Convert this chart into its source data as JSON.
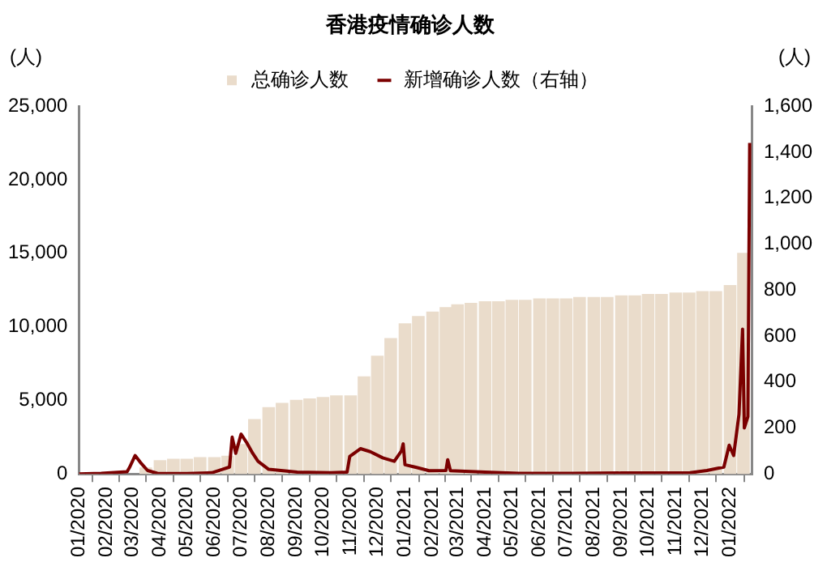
{
  "chart_data": {
    "type": "bar",
    "title": "香港疫情确诊人数",
    "ylabel": "(人)",
    "y2label": "(人)",
    "legend": "top",
    "grid": false,
    "xlim": [
      "2020-01-01",
      "2022-01-26"
    ],
    "xticks": [
      {
        "value": "2020-01-01",
        "label": "01/2020"
      },
      {
        "value": "2020-02-01",
        "label": "02/2020"
      },
      {
        "value": "2020-03-01",
        "label": "03/2020"
      },
      {
        "value": "2020-04-01",
        "label": "04/2020"
      },
      {
        "value": "2020-05-01",
        "label": "05/2020"
      },
      {
        "value": "2020-06-01",
        "label": "06/2020"
      },
      {
        "value": "2020-07-01",
        "label": "07/2020"
      },
      {
        "value": "2020-08-01",
        "label": "08/2020"
      },
      {
        "value": "2020-09-01",
        "label": "09/2020"
      },
      {
        "value": "2020-10-01",
        "label": "10/2020"
      },
      {
        "value": "2020-11-01",
        "label": "11/2020"
      },
      {
        "value": "2020-12-01",
        "label": "12/2020"
      },
      {
        "value": "2021-01-01",
        "label": "01/2021"
      },
      {
        "value": "2021-02-01",
        "label": "02/2021"
      },
      {
        "value": "2021-03-01",
        "label": "03/2021"
      },
      {
        "value": "2021-04-01",
        "label": "04/2021"
      },
      {
        "value": "2021-05-01",
        "label": "05/2021"
      },
      {
        "value": "2021-06-01",
        "label": "06/2021"
      },
      {
        "value": "2021-07-01",
        "label": "07/2021"
      },
      {
        "value": "2021-08-01",
        "label": "08/2021"
      },
      {
        "value": "2021-09-01",
        "label": "09/2021"
      },
      {
        "value": "2021-10-01",
        "label": "10/2021"
      },
      {
        "value": "2021-11-01",
        "label": "11/2021"
      },
      {
        "value": "2021-12-01",
        "label": "12/2021"
      },
      {
        "value": "2022-01-01",
        "label": "01/2022"
      }
    ],
    "ylim": [
      0,
      25000
    ],
    "yticks": [
      0,
      {
        "value": 5000,
        "label": "5,000"
      },
      {
        "value": 10000,
        "label": "10,000"
      },
      {
        "value": 15000,
        "label": "15,000"
      },
      {
        "value": 20000,
        "label": "20,000"
      },
      {
        "value": 25000,
        "label": "25,000"
      }
    ],
    "y2lim": [
      0,
      1600
    ],
    "y2ticks": [
      0,
      200,
      400,
      600,
      800,
      {
        "value": 1000,
        "label": "1,000"
      },
      {
        "value": 1200,
        "label": "1,200"
      },
      {
        "value": 1400,
        "label": "1,400"
      },
      {
        "value": 1600,
        "label": "1,600"
      }
    ],
    "series": [
      {
        "name": "总确诊人数",
        "color": "#eadccb",
        "x": [
          "2020-01-01",
          "2020-01-16",
          "2020-02-01",
          "2020-02-16",
          "2020-03-01",
          "2020-03-16",
          "2020-04-01",
          "2020-04-16",
          "2020-05-01",
          "2020-05-16",
          "2020-06-01",
          "2020-06-16",
          "2020-07-01",
          "2020-07-16",
          "2020-08-01",
          "2020-08-16",
          "2020-09-01",
          "2020-09-16",
          "2020-10-01",
          "2020-10-16",
          "2020-11-01",
          "2020-11-16",
          "2020-12-01",
          "2020-12-16",
          "2021-01-01",
          "2021-01-16",
          "2021-02-01",
          "2021-02-16",
          "2021-03-01",
          "2021-03-16",
          "2021-04-01",
          "2021-04-16",
          "2021-05-01",
          "2021-05-16",
          "2021-06-01",
          "2021-06-16",
          "2021-07-01",
          "2021-07-16",
          "2021-08-01",
          "2021-08-16",
          "2021-09-01",
          "2021-09-16",
          "2021-10-01",
          "2021-10-16",
          "2021-11-01",
          "2021-11-16",
          "2021-12-01",
          "2021-12-16",
          "2022-01-01",
          "2022-01-16"
        ],
        "values": [
          0,
          0,
          0,
          null,
          null,
          400,
          900,
          1000,
          1000,
          1100,
          1100,
          1200,
          2000,
          3700,
          4500,
          4800,
          5000,
          5100,
          5200,
          5300,
          5300,
          6600,
          8000,
          9200,
          10200,
          10700,
          11000,
          11300,
          11500,
          11600,
          11700,
          11700,
          11800,
          11800,
          11900,
          11900,
          11900,
          12000,
          12000,
          12000,
          12100,
          12100,
          12200,
          12200,
          12300,
          12300,
          12400,
          12400,
          12800,
          15000
        ]
      },
      {
        "name": "新增确诊人数（右轴）",
        "type": "line",
        "axis": "y2",
        "color": "#7b0000",
        "marker": "none",
        "line_style": "solid",
        "x": [
          "2020-01-01",
          "2020-01-26",
          "2020-02-24",
          "2020-02-27",
          "2020-03-04",
          "2020-03-10",
          "2020-03-18",
          "2020-03-29",
          "2020-05-01",
          "2020-05-29",
          "2020-06-10",
          "2020-06-18",
          "2020-06-21",
          "2020-06-25",
          "2020-07-01",
          "2020-07-07",
          "2020-07-14",
          "2020-07-20",
          "2020-08-01",
          "2020-09-02",
          "2020-10-10",
          "2020-10-28",
          "2020-10-31",
          "2020-11-12",
          "2020-11-23",
          "2020-12-07",
          "2020-12-20",
          "2020-12-28",
          "2020-12-30",
          "2021-01-01",
          "2021-01-14",
          "2021-01-28",
          "2021-02-16",
          "2021-02-18",
          "2021-02-21",
          "2021-04-01",
          "2021-05-09",
          "2021-07-06",
          "2021-09-01",
          "2021-11-17",
          "2021-12-06",
          "2021-12-25",
          "2021-12-31",
          "2022-01-05",
          "2022-01-11",
          "2022-01-15",
          "2022-01-17",
          "2022-01-21",
          "2022-01-23"
        ],
        "values": [
          0,
          3,
          10,
          30,
          80,
          50,
          15,
          3,
          2,
          5,
          20,
          30,
          160,
          90,
          173,
          138,
          90,
          55,
          20,
          8,
          5,
          8,
          76,
          110,
          97,
          70,
          55,
          100,
          131,
          40,
          28,
          14,
          15,
          62,
          14,
          8,
          3,
          3,
          4,
          5,
          15,
          30,
          125,
          80,
          260,
          630,
          200,
          250,
          1440
        ]
      }
    ]
  }
}
